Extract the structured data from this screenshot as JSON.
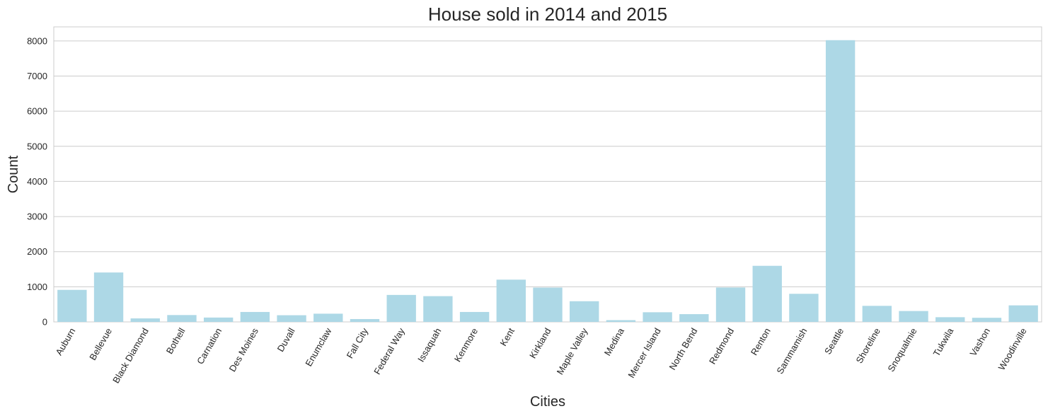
{
  "chart_data": {
    "type": "bar",
    "title": "House sold in 2014 and 2015",
    "xlabel": "Cities",
    "ylabel": "Count",
    "ylim": [
      0,
      8400
    ],
    "yticks": [
      0,
      1000,
      2000,
      3000,
      4000,
      5000,
      6000,
      7000,
      8000
    ],
    "grid": true,
    "bar_color": "#add8e6",
    "categories": [
      "Auburn",
      "Bellevue",
      "Black Diamond",
      "Bothell",
      "Carnation",
      "Des Moines",
      "Duvall",
      "Enumclaw",
      "Fall City",
      "Federal Way",
      "Issaquah",
      "Kenmore",
      "Kent",
      "Kirkland",
      "Maple Valley",
      "Medina",
      "Mercer Island",
      "North Bend",
      "Redmond",
      "Renton",
      "Sammamish",
      "Seattle",
      "Shoreline",
      "Snoqualmie",
      "Tukwila",
      "Vashon",
      "Woodinville"
    ],
    "values": [
      912,
      1407,
      100,
      195,
      124,
      283,
      190,
      234,
      81,
      768,
      733,
      283,
      1203,
      977,
      589,
      50,
      275,
      221,
      979,
      1597,
      800,
      8022,
      457,
      310,
      134,
      117,
      471
    ]
  }
}
